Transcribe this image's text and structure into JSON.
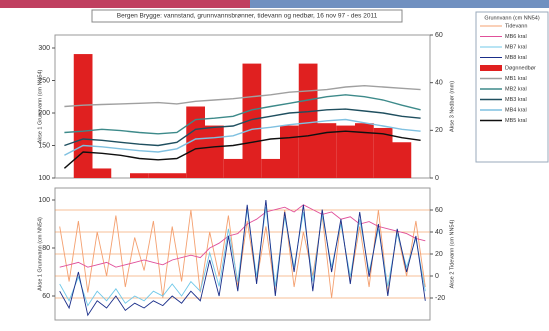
{
  "legend_title": "Grunnvann (cm NN54)",
  "chart_data": [
    {
      "type": "combo",
      "title": "Bergen Brygge: vannstand, grunnvannsbrønner, tidevann og nedbør, 16 nov 97 - des 2011",
      "ylabel": "Akse 1 Grunnvann (cm NN54)",
      "y2label": "Akse 3 Nedbør (mm)",
      "categories": [
        null,
        null,
        null,
        null,
        null,
        null,
        null,
        null,
        null,
        null,
        null,
        null,
        null,
        null,
        null,
        null,
        null,
        null,
        null,
        null
      ],
      "ylim": [
        100,
        320
      ],
      "yticks": [
        100,
        150,
        200,
        250,
        300
      ],
      "y2lim": [
        0,
        60
      ],
      "y2ticks": [
        0,
        20,
        40,
        60
      ],
      "series": [
        {
          "name": "Døgnnedbør",
          "type": "bar",
          "axis": "y2",
          "color": "#e02020",
          "values": [
            0,
            52,
            4,
            0,
            2,
            2,
            2,
            30,
            22,
            8,
            48,
            8,
            22,
            48,
            23,
            22,
            23,
            21,
            15,
            0
          ]
        },
        {
          "name": "MB1 kral",
          "type": "line",
          "color": "#a0a0a0",
          "values": [
            210,
            212,
            213,
            214,
            215,
            216,
            214,
            218,
            220,
            222,
            225,
            228,
            232,
            234,
            236,
            240,
            242,
            240,
            238,
            236
          ]
        },
        {
          "name": "MB2 kral",
          "type": "line",
          "color": "#3d8a8a",
          "values": [
            170,
            172,
            175,
            173,
            170,
            168,
            170,
            190,
            192,
            195,
            205,
            210,
            215,
            220,
            225,
            228,
            225,
            220,
            212,
            205
          ]
        },
        {
          "name": "MB3 kral",
          "type": "line",
          "color": "#1f4f5f",
          "values": [
            150,
            160,
            158,
            155,
            152,
            150,
            155,
            175,
            178,
            180,
            190,
            195,
            200,
            202,
            205,
            206,
            203,
            200,
            195,
            192
          ]
        },
        {
          "name": "MB4 kral",
          "type": "line",
          "color": "#7fc0e0",
          "values": [
            135,
            150,
            148,
            145,
            142,
            140,
            145,
            160,
            162,
            165,
            175,
            178,
            182,
            185,
            188,
            190,
            185,
            180,
            175,
            172
          ]
        },
        {
          "name": "MB5 kral",
          "type": "line",
          "color": "#101010",
          "values": [
            115,
            140,
            138,
            135,
            130,
            128,
            130,
            145,
            148,
            150,
            155,
            160,
            162,
            165,
            170,
            172,
            170,
            168,
            162,
            158
          ]
        }
      ]
    },
    {
      "type": "line",
      "ylabel": "Akse 1 Grunnvann (cm NN54)",
      "y2label": "Akse 2 Tidevann (cm NN54)",
      "categories": [
        null,
        null,
        null,
        null,
        null,
        null,
        null,
        null,
        null,
        null,
        null,
        null,
        null,
        null,
        null,
        null,
        null,
        null,
        null,
        null,
        null,
        null,
        null,
        null,
        null,
        null,
        null,
        null,
        null,
        null,
        null,
        null,
        null,
        null,
        null,
        null,
        null,
        null,
        null,
        null
      ],
      "ylim": [
        50,
        105
      ],
      "yticks": [
        60,
        80,
        100
      ],
      "y2lim": [
        -40,
        80
      ],
      "y2ticks": [
        -20,
        0,
        20,
        40,
        60
      ],
      "y2color": "#f08030",
      "series": [
        {
          "name": "Tidevann",
          "type": "line",
          "axis": "y2",
          "color": "#f4a070",
          "values": [
            45,
            -5,
            50,
            -15,
            40,
            0,
            55,
            -10,
            35,
            5,
            50,
            -20,
            45,
            -5,
            60,
            -15,
            40,
            0,
            55,
            -10,
            50,
            -5,
            45,
            -15,
            60,
            -10,
            40,
            0,
            55,
            -20,
            50,
            -5,
            45,
            -10,
            60,
            -15,
            40,
            0,
            50,
            -10
          ]
        },
        {
          "name": "MB6 kral",
          "type": "line",
          "color": "#e0509a",
          "values": [
            72,
            73,
            74,
            72,
            73,
            74,
            72,
            73,
            74,
            75,
            74,
            73,
            75,
            76,
            77,
            76,
            80,
            82,
            85,
            86,
            90,
            92,
            95,
            96,
            97,
            95,
            98,
            96,
            94,
            95,
            92,
            93,
            90,
            91,
            89,
            88,
            87,
            86,
            84,
            83
          ]
        },
        {
          "name": "MB7 kral",
          "type": "line",
          "color": "#70c8e8",
          "values": [
            65,
            58,
            68,
            56,
            62,
            58,
            63,
            57,
            60,
            58,
            62,
            60,
            65,
            60,
            66,
            62,
            78,
            64,
            88,
            66,
            96,
            68,
            97,
            64,
            93,
            72,
            95,
            66,
            94,
            72,
            90,
            68,
            92,
            70,
            88,
            64,
            86,
            72,
            84,
            62
          ]
        },
        {
          "name": "MB8 kral",
          "type": "line",
          "color": "#1a2e8a",
          "values": [
            62,
            55,
            70,
            52,
            58,
            55,
            60,
            54,
            57,
            55,
            58,
            56,
            60,
            57,
            62,
            58,
            75,
            60,
            85,
            62,
            98,
            65,
            100,
            60,
            95,
            70,
            98,
            62,
            96,
            70,
            92,
            65,
            95,
            68,
            90,
            60,
            88,
            70,
            85,
            58
          ]
        }
      ]
    }
  ]
}
